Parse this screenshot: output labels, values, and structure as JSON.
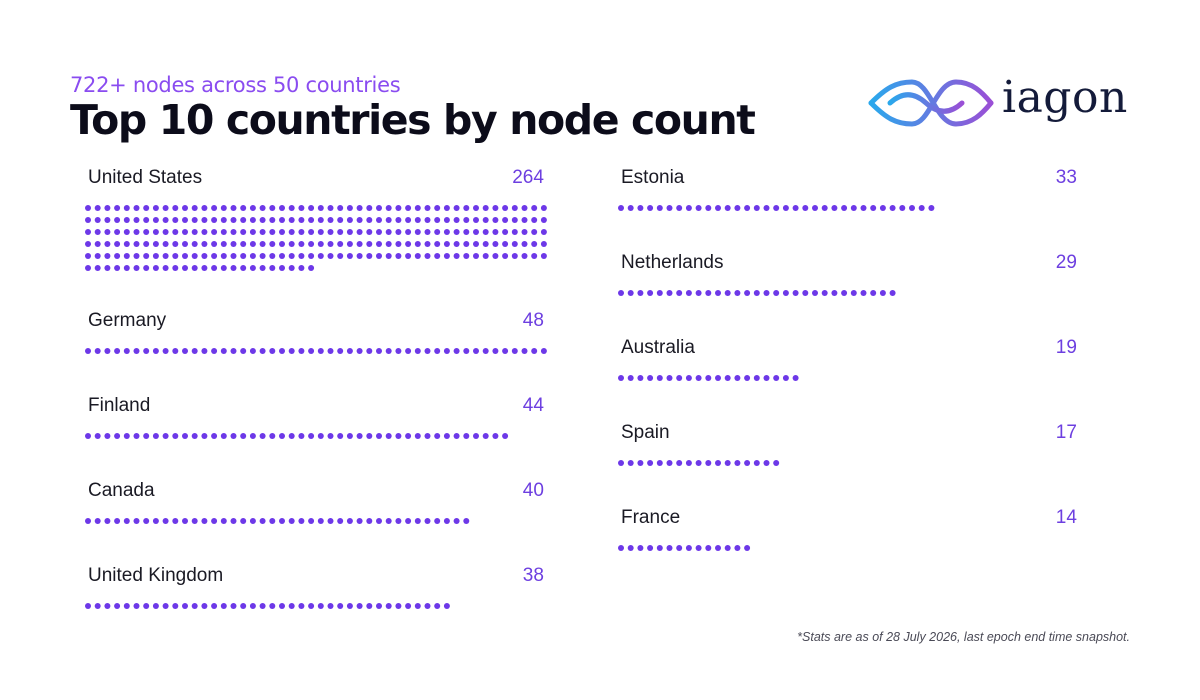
{
  "header": {
    "subtitle": "722+ nodes across 50 countries",
    "title": "Top 10 countries by node count"
  },
  "logo": {
    "wordmark": "iagon",
    "gradient_start": "#2aa8ec",
    "gradient_end": "#9a4fd6"
  },
  "colors": {
    "dot": "#6d38e8",
    "count": "#6d3fe0"
  },
  "chart_data": {
    "type": "dot-bar",
    "dots_per_row": 48,
    "categories": [
      "United States",
      "Germany",
      "Finland",
      "Canada",
      "United Kingdom",
      "Estonia",
      "Netherlands",
      "Australia",
      "Spain",
      "France"
    ],
    "values": [
      264,
      48,
      44,
      40,
      38,
      33,
      29,
      19,
      17,
      14
    ],
    "counts_text": [
      "264",
      "48",
      "44",
      "40",
      "38",
      "33",
      "29",
      "19",
      "17",
      "14"
    ]
  },
  "footnote": "*Stats are as of 28 July 2026, last epoch end time snapshot."
}
